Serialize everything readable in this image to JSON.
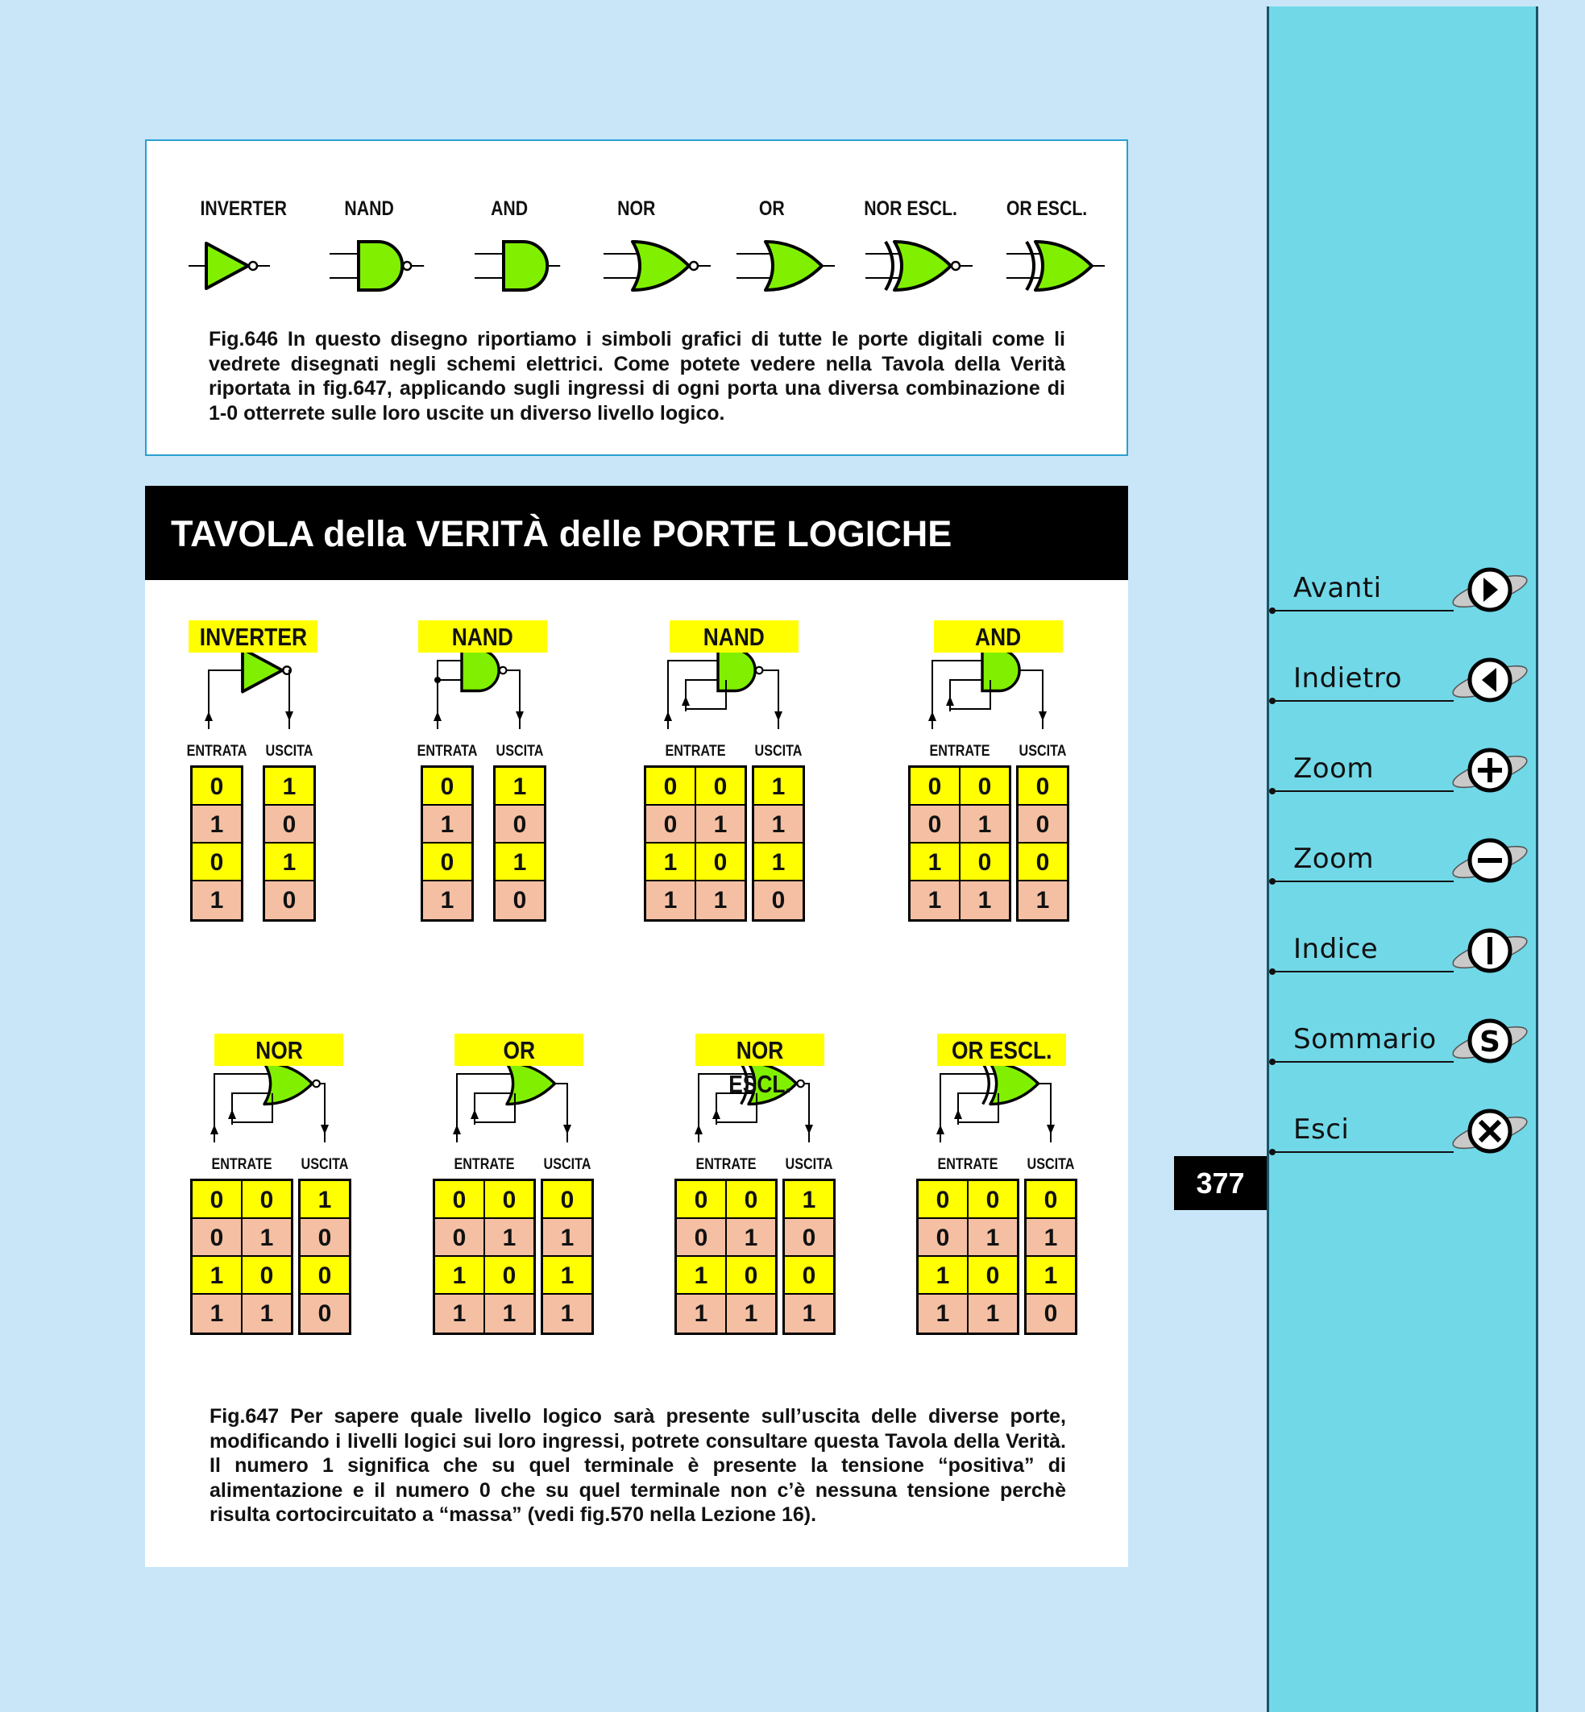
{
  "fig646": {
    "gate_labels": [
      "INVERTER",
      "NAND",
      "AND",
      "NOR",
      "OR",
      "NOR ESCL.",
      "OR ESCL."
    ],
    "caption": "Fig.646 In questo disegno riportiamo i simboli grafici di tutte le porte digitali come li vedrete disegnati negli schemi elettrici. Come potete vedere nella Tavola della Verità riportata in fig.647, applicando sugli ingressi di ogni porta una diversa combinazione di 1-0 otterrete sulle loro uscite un diverso livello logico."
  },
  "title": "TAVOLA della VERITÀ delle PORTE LOGICHE",
  "labels": {
    "entrata": "ENTRATA",
    "entrate": "ENTRATE",
    "uscita": "USCITA"
  },
  "gates_row1": [
    {
      "name": "INVERTER",
      "in_label": "ENTRATA",
      "inputs": [
        [
          "0",
          "1",
          "0",
          "1"
        ]
      ],
      "output": [
        "1",
        "0",
        "1",
        "0"
      ]
    },
    {
      "name": "NAND",
      "in_label": "ENTRATA",
      "inputs": [
        [
          "0",
          "1",
          "0",
          "1"
        ]
      ],
      "output": [
        "1",
        "0",
        "1",
        "0"
      ]
    },
    {
      "name": "NAND",
      "in_label": "ENTRATE",
      "inputs": [
        [
          "0",
          "0",
          "1",
          "1"
        ],
        [
          "0",
          "1",
          "0",
          "1"
        ]
      ],
      "output": [
        "1",
        "1",
        "1",
        "0"
      ]
    },
    {
      "name": "AND",
      "in_label": "ENTRATE",
      "inputs": [
        [
          "0",
          "0",
          "1",
          "1"
        ],
        [
          "0",
          "1",
          "0",
          "1"
        ]
      ],
      "output": [
        "0",
        "0",
        "0",
        "1"
      ]
    }
  ],
  "gates_row2": [
    {
      "name": "NOR",
      "in_label": "ENTRATE",
      "inputs": [
        [
          "0",
          "0",
          "1",
          "1"
        ],
        [
          "0",
          "1",
          "0",
          "1"
        ]
      ],
      "output": [
        "1",
        "0",
        "0",
        "0"
      ]
    },
    {
      "name": "OR",
      "in_label": "ENTRATE",
      "inputs": [
        [
          "0",
          "0",
          "1",
          "1"
        ],
        [
          "0",
          "1",
          "0",
          "1"
        ]
      ],
      "output": [
        "0",
        "1",
        "1",
        "1"
      ]
    },
    {
      "name": "NOR ESCL.",
      "in_label": "ENTRATE",
      "inputs": [
        [
          "0",
          "0",
          "1",
          "1"
        ],
        [
          "0",
          "1",
          "0",
          "1"
        ]
      ],
      "output": [
        "1",
        "0",
        "0",
        "1"
      ]
    },
    {
      "name": "OR ESCL.",
      "in_label": "ENTRATE",
      "inputs": [
        [
          "0",
          "0",
          "1",
          "1"
        ],
        [
          "0",
          "1",
          "0",
          "1"
        ]
      ],
      "output": [
        "0",
        "1",
        "1",
        "0"
      ]
    }
  ],
  "fig647": {
    "caption": "Fig.647 Per sapere quale livello logico sarà presente sull’uscita delle diverse porte, modificando i livelli logici sui loro ingressi, potrete consultare questa Tavola della Verità. Il numero 1 significa che su quel terminale è presente la tensione “positiva” di alimentazione e il numero 0 che su quel terminale non c’è nessuna tensione perchè risulta cortocircuitato a “massa” (vedi fig.570 nella Lezione 16)."
  },
  "page_number": "377",
  "nav": [
    {
      "label": "Avanti",
      "icon": "play-icon"
    },
    {
      "label": "Indietro",
      "icon": "back-icon"
    },
    {
      "label": "Zoom",
      "icon": "zoom-in-icon"
    },
    {
      "label": "Zoom",
      "icon": "zoom-out-icon"
    },
    {
      "label": "Indice",
      "icon": "index-icon"
    },
    {
      "label": "Sommario",
      "icon": "summary-icon"
    },
    {
      "label": "Esci",
      "icon": "close-icon"
    }
  ],
  "colors": {
    "gate_fill": "#80f000",
    "label_yellow": "#ffff00",
    "cell_pink": "#f4bfa3",
    "sidebar": "#71d8e8",
    "background": "#c8e6f8"
  }
}
